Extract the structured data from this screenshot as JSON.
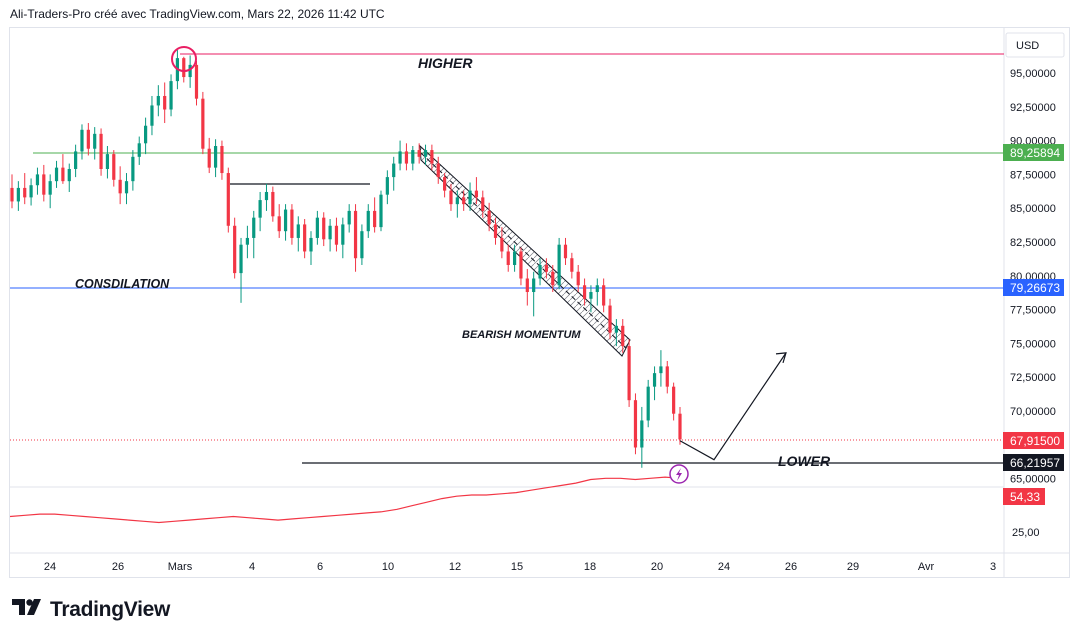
{
  "header": {
    "text": "Ali-Traders-Pro créé avec TradingView.com, Mars 22, 2026 11:42 UTC"
  },
  "footer": {
    "logo_text": "TradingView"
  },
  "colors": {
    "bull": "#089981",
    "bear": "#f23645",
    "levels_green": "#4caf50",
    "levels_blue": "#2962ff",
    "rsi": "#f23645",
    "higher_line": "#e91e63"
  },
  "chart_data": {
    "type": "candlestick",
    "currency": "USD",
    "y_price_range": [
      64000,
      97000
    ],
    "y_ticks": [
      "95,00000",
      "92,50000",
      "90,00000",
      "87,50000",
      "85,00000",
      "82,50000",
      "80,00000",
      "77,50000",
      "75,00000",
      "72,50000",
      "70,00000",
      "65,00000"
    ],
    "x_ticks": [
      "24",
      "26",
      "Mars",
      "4",
      "6",
      "10",
      "12",
      "15",
      "18",
      "20",
      "24",
      "26",
      "29",
      "Avr",
      "3"
    ],
    "price_labels": {
      "green_level": "89,25894",
      "blue_level": "79,26673",
      "current": "67,91500",
      "lower_level": "66,21957",
      "rsi_value": "54,33"
    },
    "rsi_axis_tick": "25,00",
    "annotations": {
      "higher": "HIGHER",
      "consolidation": "CONSDILATION",
      "bearish": "BEARISH MOMENTUM",
      "lower": "LOWER"
    },
    "levels": {
      "higher": 96200,
      "green": 89259,
      "blue": 79267,
      "consolidation_top": 86800,
      "lower": 66220,
      "current": 67915
    },
    "projection": [
      [
        67800,
        66400
      ],
      [
        66400,
        74300
      ]
    ],
    "candles": [
      [
        86500,
        87500,
        85000,
        85500
      ],
      [
        85500,
        87000,
        84800,
        86500
      ],
      [
        86500,
        87600,
        85300,
        85800
      ],
      [
        85800,
        87200,
        85200,
        86700
      ],
      [
        86700,
        88000,
        86000,
        87500
      ],
      [
        87500,
        88200,
        85500,
        86000
      ],
      [
        86000,
        87500,
        85000,
        87000
      ],
      [
        87000,
        88500,
        86500,
        88000
      ],
      [
        88000,
        89000,
        86800,
        87000
      ],
      [
        87000,
        88300,
        86200,
        87900
      ],
      [
        87900,
        89700,
        87300,
        89200
      ],
      [
        89200,
        91200,
        88600,
        90800
      ],
      [
        90800,
        91300,
        88900,
        89400
      ],
      [
        89400,
        91000,
        88600,
        90500
      ],
      [
        90500,
        90900,
        87400,
        87900
      ],
      [
        87900,
        89600,
        87200,
        89000
      ],
      [
        89000,
        89300,
        86600,
        87100
      ],
      [
        87100,
        88100,
        85300,
        86100
      ],
      [
        86100,
        87600,
        85300,
        87000
      ],
      [
        87000,
        89300,
        86300,
        88800
      ],
      [
        88800,
        90300,
        88200,
        89800
      ],
      [
        89800,
        91700,
        89000,
        91100
      ],
      [
        91100,
        93300,
        90400,
        92600
      ],
      [
        92600,
        94100,
        91800,
        93300
      ],
      [
        93300,
        94300,
        91300,
        92300
      ],
      [
        92300,
        94900,
        91800,
        94400
      ],
      [
        94400,
        96700,
        93800,
        96100
      ],
      [
        96100,
        96200,
        94300,
        94700
      ],
      [
        94700,
        96300,
        93900,
        95600
      ],
      [
        95600,
        95900,
        92600,
        93100
      ],
      [
        93100,
        93600,
        89000,
        89400
      ],
      [
        89400,
        90200,
        87600,
        88000
      ],
      [
        88000,
        90100,
        87300,
        89600
      ],
      [
        89600,
        90000,
        87100,
        87600
      ],
      [
        87600,
        88000,
        83200,
        83700
      ],
      [
        83700,
        84300,
        79800,
        80200
      ],
      [
        80200,
        82800,
        78000,
        82300
      ],
      [
        82300,
        83700,
        81300,
        82800
      ],
      [
        82800,
        84800,
        81300,
        84300
      ],
      [
        84300,
        86200,
        83300,
        85600
      ],
      [
        85600,
        86800,
        84800,
        86200
      ],
      [
        86200,
        86600,
        84000,
        84400
      ],
      [
        84400,
        85300,
        82800,
        83300
      ],
      [
        83300,
        85300,
        82600,
        84900
      ],
      [
        84900,
        85300,
        82300,
        82800
      ],
      [
        82800,
        84400,
        81800,
        83800
      ],
      [
        83800,
        84200,
        81300,
        81800
      ],
      [
        81800,
        83300,
        80800,
        82800
      ],
      [
        82800,
        84800,
        82300,
        84300
      ],
      [
        84300,
        84700,
        82200,
        82700
      ],
      [
        82700,
        84200,
        81800,
        83700
      ],
      [
        83700,
        84300,
        81800,
        82300
      ],
      [
        82300,
        84300,
        81300,
        83800
      ],
      [
        83800,
        85300,
        83200,
        84800
      ],
      [
        84800,
        85300,
        80300,
        81300
      ],
      [
        81300,
        83800,
        80800,
        83300
      ],
      [
        83300,
        85300,
        82800,
        84800
      ],
      [
        84800,
        85800,
        83200,
        83600
      ],
      [
        83600,
        86300,
        83300,
        86000
      ],
      [
        86000,
        87800,
        85300,
        87300
      ],
      [
        87300,
        88800,
        86300,
        88300
      ],
      [
        88300,
        90000,
        87800,
        89200
      ],
      [
        89200,
        89800,
        87800,
        88300
      ],
      [
        88300,
        89600,
        87800,
        89300
      ],
      [
        89300,
        89800,
        88300,
        88800
      ],
      [
        88800,
        89700,
        88200,
        89300
      ],
      [
        89300,
        89700,
        87800,
        88300
      ],
      [
        88300,
        88800,
        86800,
        87300
      ],
      [
        87300,
        87600,
        85800,
        86300
      ],
      [
        86300,
        86800,
        84800,
        85300
      ],
      [
        85300,
        86300,
        84300,
        85800
      ],
      [
        85800,
        86300,
        84800,
        85300
      ],
      [
        85300,
        86900,
        84800,
        86300
      ],
      [
        86300,
        87300,
        85300,
        85800
      ],
      [
        85800,
        86300,
        84300,
        84800
      ],
      [
        84800,
        85400,
        83300,
        83800
      ],
      [
        83800,
        84300,
        82300,
        82800
      ],
      [
        82800,
        83600,
        81300,
        81800
      ],
      [
        81800,
        82300,
        80300,
        80800
      ],
      [
        80800,
        82300,
        80300,
        81800
      ],
      [
        81800,
        82100,
        79300,
        79800
      ],
      [
        79800,
        80500,
        77800,
        78800
      ],
      [
        78800,
        80300,
        77000,
        79800
      ],
      [
        79800,
        81300,
        79300,
        80800
      ],
      [
        80800,
        81300,
        79800,
        80300
      ],
      [
        80300,
        80800,
        78800,
        79300
      ],
      [
        79300,
        82800,
        79000,
        82300
      ],
      [
        82300,
        82800,
        80800,
        81300
      ],
      [
        81300,
        81700,
        79800,
        80300
      ],
      [
        80300,
        80800,
        78800,
        79300
      ],
      [
        79300,
        79800,
        77800,
        78300
      ],
      [
        78300,
        79300,
        77300,
        78800
      ],
      [
        78800,
        79800,
        77800,
        79300
      ],
      [
        79300,
        79800,
        77300,
        77800
      ],
      [
        77800,
        78300,
        75300,
        75800
      ],
      [
        75800,
        76800,
        74800,
        76300
      ],
      [
        76300,
        76800,
        74300,
        74800
      ],
      [
        74800,
        75300,
        70300,
        70800
      ],
      [
        70800,
        71300,
        66800,
        67300
      ],
      [
        67300,
        70300,
        65800,
        69300
      ],
      [
        69300,
        72300,
        68800,
        71800
      ],
      [
        71800,
        73300,
        70800,
        72800
      ],
      [
        72800,
        74500,
        71800,
        73300
      ],
      [
        73300,
        73700,
        71300,
        71800
      ],
      [
        71800,
        72100,
        69300,
        69800
      ],
      [
        69800,
        70300,
        67500,
        67900
      ]
    ],
    "rsi": [
      38,
      39,
      40,
      40,
      39,
      38,
      37,
      36,
      35,
      34,
      33,
      34,
      35,
      36,
      37,
      38,
      37,
      36,
      35,
      36,
      37,
      38,
      39,
      40,
      41,
      42,
      44,
      47,
      50,
      53,
      55,
      56,
      56,
      57,
      58,
      60,
      62,
      64,
      66,
      69,
      70,
      70,
      69,
      70,
      71,
      70
    ]
  }
}
